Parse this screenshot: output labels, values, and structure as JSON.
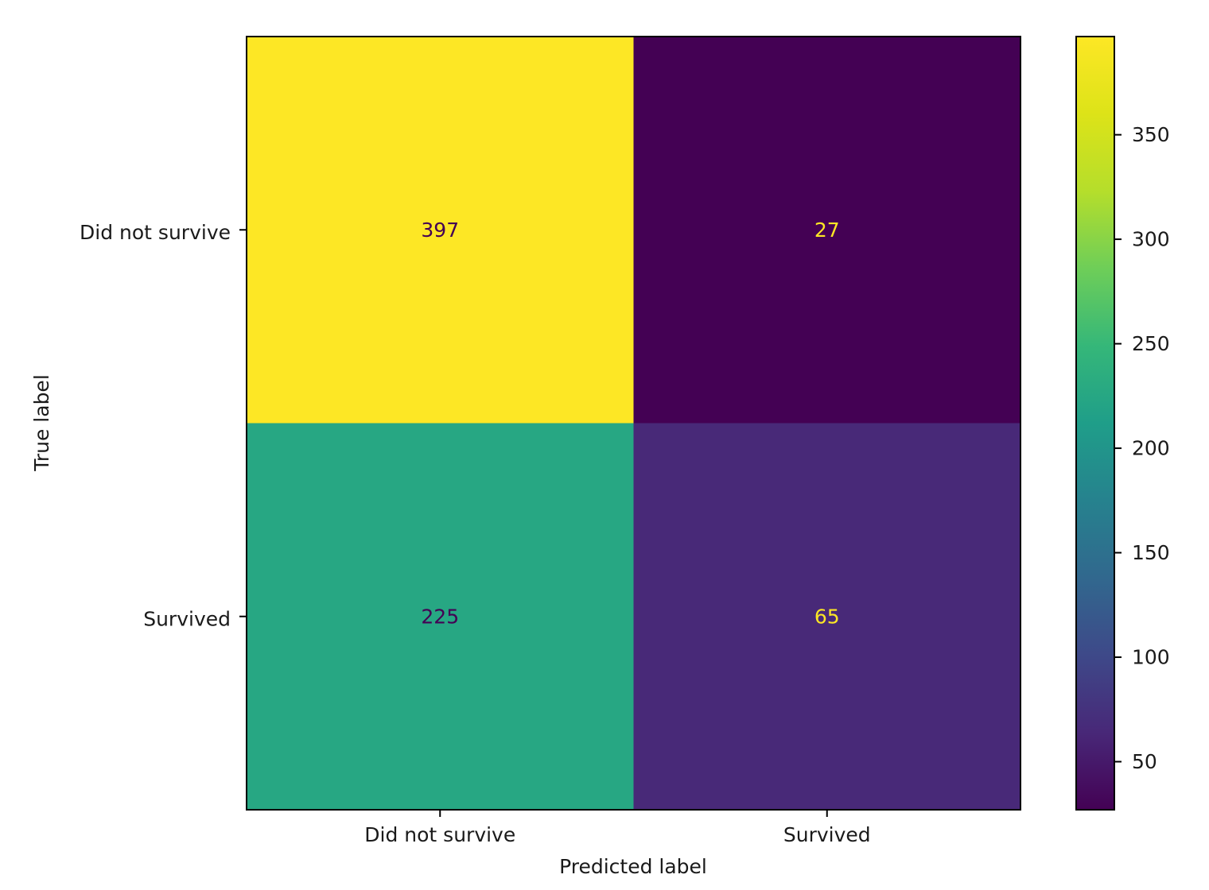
{
  "chart_data": {
    "type": "heatmap",
    "title": "",
    "xlabel": "Predicted label",
    "ylabel": "True label",
    "x_categories": [
      "Did not survive",
      "Survived"
    ],
    "y_categories": [
      "Did not survive",
      "Survived"
    ],
    "matrix": [
      [
        397,
        27
      ],
      [
        225,
        65
      ]
    ],
    "colormap": "viridis",
    "text_color_dark": "#440154",
    "text_color_light": "#fde725",
    "colorbar": {
      "min": 27,
      "max": 397,
      "ticks": [
        50,
        100,
        150,
        200,
        250,
        300,
        350
      ]
    },
    "grid": false,
    "legend": "colorbar-right"
  }
}
